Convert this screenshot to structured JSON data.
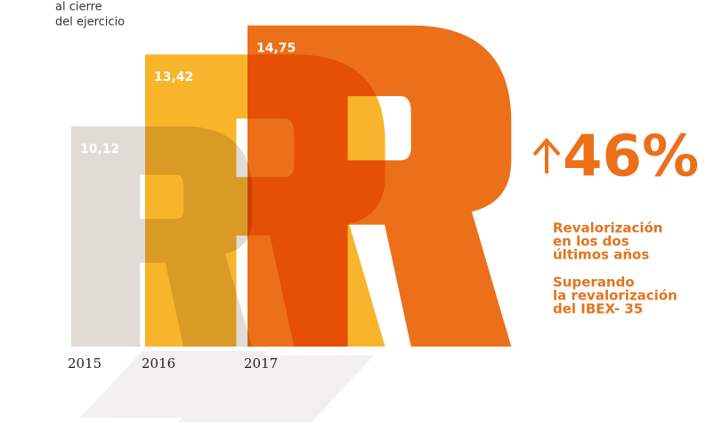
{
  "chart_data": {
    "type": "bar",
    "note": [
      "al cierre",
      "del ejercicio"
    ],
    "categories": [
      "2015",
      "2016",
      "2017"
    ],
    "values": [
      10.12,
      13.42,
      14.75
    ],
    "value_labels": [
      "10,12",
      "13,42",
      "14,75"
    ],
    "colors": [
      "#e0dbd4",
      "#f8b52c",
      "#ec7019"
    ],
    "ylim": [
      0,
      16
    ],
    "headline": "46%",
    "headline_color": "#ec7019",
    "text_color": "#e2741e",
    "paragraphs": [
      [
        "Revalorización",
        "en los dos",
        "últimos años"
      ],
      [
        "Superando",
        "la revalorización",
        "del IBEX- 35"
      ]
    ]
  }
}
